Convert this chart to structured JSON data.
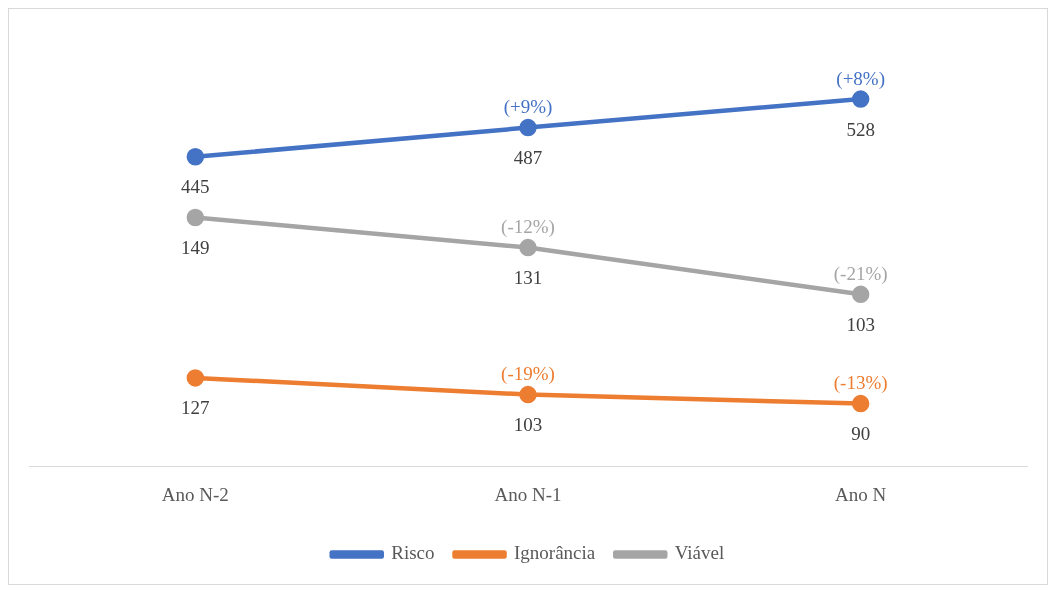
{
  "chart_data": {
    "type": "line",
    "categories": [
      "Ano N-2",
      "Ano N-1",
      "Ano N"
    ],
    "series": [
      {
        "name": "Risco",
        "color": "#4472c4",
        "values": [
          445,
          487,
          528
        ]
      },
      {
        "name": "Ignorância",
        "color": "#ed7d31",
        "values": [
          127,
          103,
          90
        ]
      },
      {
        "name": "Viável",
        "color": "#a5a5a5",
        "values": [
          149,
          131,
          103
        ],
        "axis": "y2"
      }
    ],
    "tick_labels": "x",
    "grid": false,
    "legend": "bottom",
    "marker": "circle",
    "line_style": "solid",
    "data_labels": true,
    "annotations": [
      {
        "text": "(+9%)",
        "x": "Ano N-1",
        "y": 487
      },
      {
        "text": "(+8%)",
        "x": "Ano N",
        "y": 528
      },
      {
        "text": "(-19%)",
        "x": "Ano N-1",
        "y": 103
      },
      {
        "text": "(-13%)",
        "x": "Ano N",
        "y": 90
      },
      "(-12%)",
      "(-21%)"
    ]
  }
}
